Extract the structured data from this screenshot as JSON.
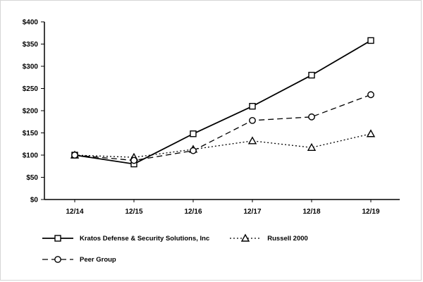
{
  "chart_data": {
    "type": "line",
    "title": "",
    "xlabel": "",
    "ylabel": "",
    "x": [
      "12/14",
      "12/15",
      "12/16",
      "12/17",
      "12/18",
      "12/19"
    ],
    "series": [
      {
        "name": "Kratos Defense & Security Solutions, Inc",
        "line_style": "solid",
        "marker": "square",
        "values": [
          100,
          80,
          148,
          210,
          280,
          358
        ]
      },
      {
        "name": "Russell 2000",
        "line_style": "dotted",
        "marker": "triangle",
        "values": [
          100,
          95,
          113,
          132,
          117,
          148
        ]
      },
      {
        "name": "Peer Group",
        "line_style": "dashed",
        "marker": "circle",
        "values": [
          100,
          88,
          110,
          178,
          186,
          236
        ]
      }
    ],
    "ylim": [
      0,
      400
    ],
    "ytick_step": 50,
    "ytick_labels": [
      "$0",
      "$50",
      "$100",
      "$150",
      "$200",
      "$250",
      "$300",
      "$350",
      "$400"
    ],
    "grid": false,
    "legend_position": "bottom",
    "line_color": "#000000",
    "background_color": "#ffffff"
  }
}
